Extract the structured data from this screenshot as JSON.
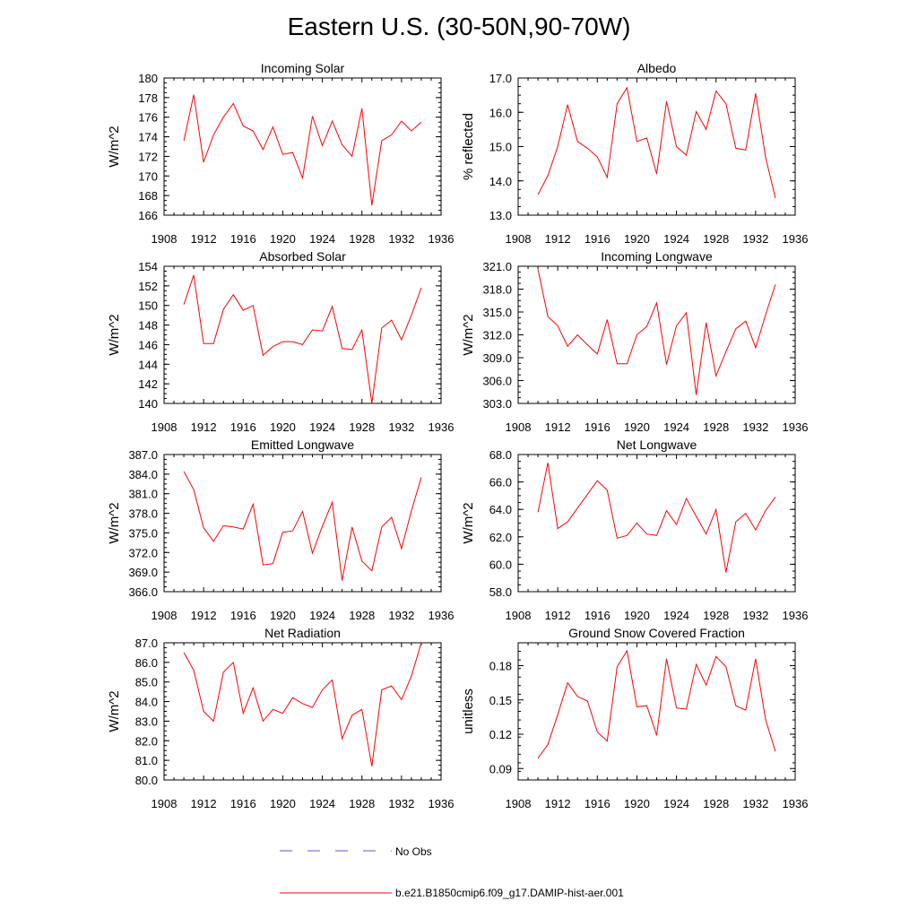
{
  "figure": {
    "title": "Eastern U.S. (30-50N,90-70W)",
    "legend": [
      {
        "label": "No Obs",
        "color": "#5a5ad8",
        "dashed": true
      },
      {
        "label": "b.e21.B1850cmip6.f09_g17.DAMIP-hist-aer.001",
        "color": "#ff0000",
        "dashed": false
      }
    ]
  },
  "chart_data": [
    {
      "type": "line",
      "title": "Incoming Solar",
      "ylabel": "W/m^2",
      "xlim": [
        1908,
        1936
      ],
      "xticks": [
        1908,
        1912,
        1916,
        1920,
        1924,
        1928,
        1932,
        1936
      ],
      "ylim": [
        166,
        180
      ],
      "yticks": [
        "166",
        "168",
        "170",
        "172",
        "174",
        "176",
        "178",
        "180"
      ],
      "series": [
        {
          "color": "#ff0000",
          "x": [
            1910,
            1911,
            1912,
            1913,
            1914,
            1915,
            1916,
            1917,
            1918,
            1919,
            1920,
            1921,
            1922,
            1923,
            1924,
            1925,
            1926,
            1927,
            1928,
            1929,
            1930,
            1931,
            1932,
            1933,
            1934
          ],
          "values": [
            173.6,
            178.3,
            171.4,
            174.2,
            176.0,
            177.4,
            175.1,
            174.6,
            172.7,
            175.0,
            172.2,
            172.4,
            169.8,
            176.1,
            173.1,
            175.6,
            173.2,
            172.0,
            176.9,
            167.0,
            173.6,
            174.2,
            175.6,
            174.6,
            175.5
          ]
        }
      ]
    },
    {
      "type": "line",
      "title": "Albedo",
      "ylabel": "% reflected",
      "xlim": [
        1908,
        1936
      ],
      "xticks": [
        1908,
        1912,
        1916,
        1920,
        1924,
        1928,
        1932,
        1936
      ],
      "ylim": [
        13.0,
        17.0
      ],
      "yticks": [
        "13.0",
        "14.0",
        "15.0",
        "16.0",
        "17.0"
      ],
      "series": [
        {
          "color": "#ff0000",
          "x": [
            1910,
            1911,
            1912,
            1913,
            1914,
            1915,
            1916,
            1917,
            1918,
            1919,
            1920,
            1921,
            1922,
            1923,
            1924,
            1925,
            1926,
            1927,
            1928,
            1929,
            1930,
            1931,
            1932,
            1933,
            1934
          ],
          "values": [
            13.6,
            14.15,
            15.0,
            16.22,
            15.15,
            14.95,
            14.7,
            14.1,
            16.25,
            16.72,
            15.15,
            15.25,
            14.2,
            16.32,
            15.0,
            14.75,
            16.02,
            15.5,
            16.62,
            16.25,
            14.95,
            14.9,
            16.55,
            14.7,
            13.5
          ]
        }
      ]
    },
    {
      "type": "line",
      "title": "Absorbed Solar",
      "ylabel": "W/m^2",
      "xlim": [
        1908,
        1936
      ],
      "xticks": [
        1908,
        1912,
        1916,
        1920,
        1924,
        1928,
        1932,
        1936
      ],
      "ylim": [
        140,
        154
      ],
      "yticks": [
        "140",
        "142",
        "144",
        "146",
        "148",
        "150",
        "152",
        "154"
      ],
      "series": [
        {
          "color": "#ff0000",
          "x": [
            1910,
            1911,
            1912,
            1913,
            1914,
            1915,
            1916,
            1917,
            1918,
            1919,
            1920,
            1921,
            1922,
            1923,
            1924,
            1925,
            1926,
            1927,
            1928,
            1929,
            1930,
            1931,
            1932,
            1933,
            1934
          ],
          "values": [
            150.1,
            153.1,
            146.1,
            146.1,
            149.6,
            151.1,
            149.5,
            150.0,
            144.9,
            145.8,
            146.3,
            146.3,
            146.0,
            147.5,
            147.4,
            149.9,
            145.6,
            145.5,
            147.5,
            140.0,
            147.7,
            148.5,
            146.5,
            149.0,
            151.8
          ]
        }
      ]
    },
    {
      "type": "line",
      "title": "Incoming Longwave",
      "ylabel": "W/m^2",
      "xlim": [
        1908,
        1936
      ],
      "xticks": [
        1908,
        1912,
        1916,
        1920,
        1924,
        1928,
        1932,
        1936
      ],
      "ylim": [
        303.0,
        321.0
      ],
      "yticks": [
        "303.0",
        "306.0",
        "309.0",
        "312.0",
        "315.0",
        "318.0",
        "321.0"
      ],
      "series": [
        {
          "color": "#ff0000",
          "x": [
            1910,
            1911,
            1912,
            1913,
            1914,
            1915,
            1916,
            1917,
            1918,
            1919,
            1920,
            1921,
            1922,
            1923,
            1924,
            1925,
            1926,
            1927,
            1928,
            1929,
            1930,
            1931,
            1932,
            1933,
            1934
          ],
          "values": [
            320.6,
            314.4,
            313.2,
            310.5,
            312.0,
            310.7,
            309.5,
            314.0,
            308.2,
            308.2,
            312.0,
            313.1,
            316.2,
            308.1,
            313.2,
            314.9,
            304.1,
            313.6,
            306.6,
            309.8,
            312.8,
            313.8,
            310.3,
            314.6,
            318.6
          ]
        }
      ]
    },
    {
      "type": "line",
      "title": "Emitted Longwave",
      "ylabel": "W/m^2",
      "xlim": [
        1908,
        1936
      ],
      "xticks": [
        1908,
        1912,
        1916,
        1920,
        1924,
        1928,
        1932,
        1936
      ],
      "ylim": [
        366.0,
        387.0
      ],
      "yticks": [
        "366.0",
        "369.0",
        "372.0",
        "375.0",
        "378.0",
        "381.0",
        "384.0",
        "387.0"
      ],
      "series": [
        {
          "color": "#ff0000",
          "x": [
            1910,
            1911,
            1912,
            1913,
            1914,
            1915,
            1916,
            1917,
            1918,
            1919,
            1920,
            1921,
            1922,
            1923,
            1924,
            1925,
            1926,
            1927,
            1928,
            1929,
            1930,
            1931,
            1932,
            1933,
            1934
          ],
          "values": [
            384.4,
            381.6,
            375.8,
            373.7,
            376.1,
            375.9,
            375.6,
            379.4,
            370.1,
            370.3,
            375.1,
            375.3,
            378.3,
            371.9,
            376.0,
            379.7,
            367.7,
            375.9,
            370.7,
            369.2,
            375.9,
            377.4,
            372.6,
            378.4,
            383.5
          ]
        }
      ]
    },
    {
      "type": "line",
      "title": "Net Longwave",
      "ylabel": "W/m^2",
      "xlim": [
        1908,
        1936
      ],
      "xticks": [
        1908,
        1912,
        1916,
        1920,
        1924,
        1928,
        1932,
        1936
      ],
      "ylim": [
        58.0,
        68.0
      ],
      "yticks": [
        "58.0",
        "60.0",
        "62.0",
        "64.0",
        "66.0",
        "68.0"
      ],
      "series": [
        {
          "color": "#ff0000",
          "x": [
            1910,
            1911,
            1912,
            1913,
            1914,
            1915,
            1916,
            1917,
            1918,
            1919,
            1920,
            1921,
            1922,
            1923,
            1924,
            1925,
            1926,
            1927,
            1928,
            1929,
            1930,
            1931,
            1932,
            1933,
            1934
          ],
          "values": [
            63.8,
            67.4,
            62.6,
            63.1,
            64.1,
            65.1,
            66.1,
            65.4,
            61.9,
            62.1,
            63.0,
            62.2,
            62.1,
            63.9,
            62.9,
            64.8,
            63.5,
            62.2,
            64.0,
            59.4,
            63.1,
            63.7,
            62.5,
            63.9,
            64.9
          ]
        }
      ]
    },
    {
      "type": "line",
      "title": "Net Radiation",
      "ylabel": "W/m^2",
      "xlim": [
        1908,
        1936
      ],
      "xticks": [
        1908,
        1912,
        1916,
        1920,
        1924,
        1928,
        1932,
        1936
      ],
      "ylim": [
        80.0,
        87.0
      ],
      "yticks": [
        "80.0",
        "81.0",
        "82.0",
        "83.0",
        "84.0",
        "85.0",
        "86.0",
        "87.0"
      ],
      "series": [
        {
          "color": "#ff0000",
          "x": [
            1910,
            1911,
            1912,
            1913,
            1914,
            1915,
            1916,
            1917,
            1918,
            1919,
            1920,
            1921,
            1922,
            1923,
            1924,
            1925,
            1926,
            1927,
            1928,
            1929,
            1930,
            1931,
            1932,
            1933,
            1934
          ],
          "values": [
            86.5,
            85.6,
            83.5,
            83.0,
            85.5,
            86.0,
            83.4,
            84.7,
            83.0,
            83.6,
            83.4,
            84.2,
            83.9,
            83.7,
            84.6,
            85.1,
            82.1,
            83.3,
            83.6,
            80.7,
            84.6,
            84.8,
            84.1,
            85.3,
            87.0
          ]
        }
      ]
    },
    {
      "type": "line",
      "title": "Ground Snow Covered Fraction",
      "ylabel": "unitless",
      "xlim": [
        1908,
        1936
      ],
      "xticks": [
        1908,
        1912,
        1916,
        1920,
        1924,
        1928,
        1932,
        1936
      ],
      "ylim": [
        0.08,
        0.2
      ],
      "yticks": [
        "0.09",
        "0.12",
        "0.15",
        "0.18"
      ],
      "ytick_values": [
        0.09,
        0.12,
        0.15,
        0.18
      ],
      "series": [
        {
          "color": "#ff0000",
          "x": [
            1910,
            1911,
            1912,
            1913,
            1914,
            1915,
            1916,
            1917,
            1918,
            1919,
            1920,
            1921,
            1922,
            1923,
            1924,
            1925,
            1926,
            1927,
            1928,
            1929,
            1930,
            1931,
            1932,
            1933,
            1934
          ],
          "values": [
            0.099,
            0.111,
            0.137,
            0.165,
            0.153,
            0.149,
            0.122,
            0.114,
            0.179,
            0.193,
            0.144,
            0.145,
            0.119,
            0.186,
            0.143,
            0.142,
            0.181,
            0.163,
            0.188,
            0.179,
            0.145,
            0.141,
            0.186,
            0.133,
            0.105
          ]
        }
      ]
    }
  ]
}
